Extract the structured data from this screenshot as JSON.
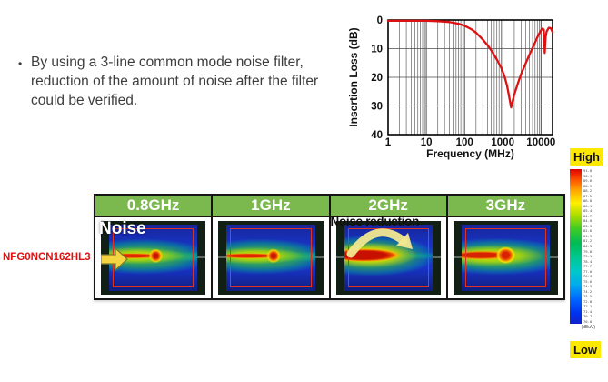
{
  "bullet": {
    "marker": "•",
    "lines": [
      "By using a 3-line common mode noise filter,",
      "reduction of the amount of noise after the filter",
      "could be verified."
    ]
  },
  "chart_data": {
    "type": "line",
    "title": "",
    "xlabel": "Frequency (MHz)",
    "ylabel": "Insertion Loss (dB)",
    "x_scale": "log",
    "xlim": [
      1,
      20000
    ],
    "ylim": [
      0,
      40
    ],
    "y_inverted": true,
    "grid": true,
    "legend": "none",
    "x_ticks": [
      1,
      10,
      100,
      1000,
      10000
    ],
    "y_ticks": [
      0,
      10,
      20,
      30,
      40
    ],
    "line_color": "#dd1111",
    "series": [
      {
        "name": "Insertion Loss",
        "points": [
          [
            1,
            0.3
          ],
          [
            5,
            0.3
          ],
          [
            10,
            0.3
          ],
          [
            20,
            0.4
          ],
          [
            40,
            0.7
          ],
          [
            70,
            1.3
          ],
          [
            100,
            2
          ],
          [
            150,
            3.2
          ],
          [
            200,
            4.4
          ],
          [
            300,
            6.8
          ],
          [
            400,
            8.8
          ],
          [
            500,
            10.6
          ],
          [
            700,
            13.8
          ],
          [
            900,
            16.5
          ],
          [
            1100,
            19.5
          ],
          [
            1300,
            23
          ],
          [
            1500,
            27.5
          ],
          [
            1650,
            30.5
          ],
          [
            1800,
            28.5
          ],
          [
            2000,
            26
          ],
          [
            2500,
            22
          ],
          [
            3000,
            19
          ],
          [
            4000,
            15
          ],
          [
            5000,
            12
          ],
          [
            6000,
            9.7
          ],
          [
            7000,
            7.8
          ],
          [
            8000,
            6
          ],
          [
            9000,
            4.7
          ],
          [
            10000,
            3.6
          ],
          [
            11000,
            3
          ],
          [
            11800,
            3.4
          ],
          [
            12500,
            11.5
          ],
          [
            13200,
            6
          ],
          [
            14000,
            4
          ],
          [
            16000,
            2.7
          ],
          [
            18000,
            2.9
          ],
          [
            20000,
            4.2
          ]
        ]
      }
    ]
  },
  "panels": {
    "component_label": "NFG0NCN162HL3",
    "header_color": "#7bb84e",
    "items": [
      {
        "label": "0.8GHz",
        "annotation": "Noise"
      },
      {
        "label": "1GHz",
        "annotation": ""
      },
      {
        "label": "2GHz",
        "annotation": "Noise reduction"
      },
      {
        "label": "3GHz",
        "annotation": ""
      }
    ]
  },
  "colorbar": {
    "high_label": "High",
    "low_label": "Low",
    "unit": "(dBuV)",
    "values": [
      91.0,
      90.3,
      89.6,
      88.9,
      88.2,
      87.5,
      86.8,
      86.1,
      85.4,
      84.7,
      84.0,
      83.3,
      82.6,
      81.9,
      81.2,
      80.5,
      79.8,
      79.1,
      78.4,
      77.7,
      77.0,
      76.3,
      75.6,
      74.9,
      74.2,
      73.5,
      72.8,
      72.1,
      71.4,
      70.7,
      70.0
    ]
  },
  "colors": {
    "header_green": "#7bb84e",
    "highlight_yellow": "#fde900",
    "label_red": "#e01111",
    "chart_line": "#dd1111",
    "arrow_yellow": "#f5d442",
    "curve_arrow_yellow": "#f2e88f"
  }
}
